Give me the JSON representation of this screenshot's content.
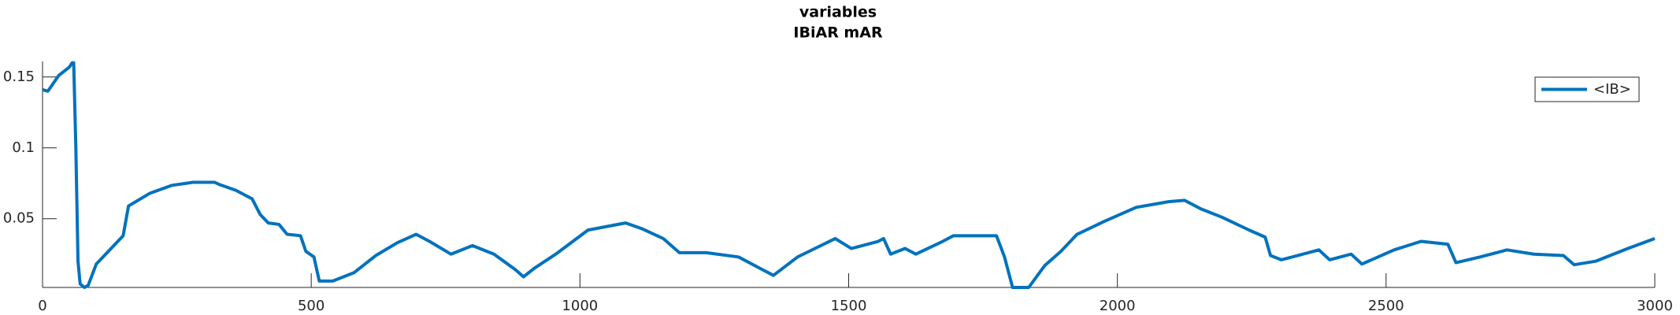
{
  "chart_data": {
    "type": "line",
    "title": "variables",
    "subtitle": "IBiAR mAR",
    "x": [
      0,
      10,
      30,
      50,
      55,
      58,
      62,
      66,
      70,
      78,
      85,
      100,
      150,
      160,
      200,
      240,
      280,
      320,
      330,
      360,
      390,
      405,
      420,
      440,
      455,
      480,
      490,
      505,
      515,
      540,
      580,
      620,
      660,
      695,
      720,
      760,
      800,
      840,
      880,
      895,
      915,
      955,
      1015,
      1085,
      1115,
      1155,
      1185,
      1235,
      1295,
      1335,
      1360,
      1405,
      1475,
      1505,
      1555,
      1565,
      1578,
      1605,
      1625,
      1675,
      1695,
      1775,
      1790,
      1805,
      1835,
      1865,
      1895,
      1925,
      1975,
      2035,
      2095,
      2125,
      2155,
      2195,
      2245,
      2275,
      2285,
      2305,
      2375,
      2395,
      2435,
      2455,
      2515,
      2565,
      2615,
      2630,
      2675,
      2725,
      2775,
      2830,
      2850,
      2890,
      2950,
      3000
    ],
    "series": [
      {
        "name": "<IB>",
        "color": "#0072bd",
        "values": [
          0.141,
          0.14,
          0.151,
          0.157,
          0.16,
          0.16,
          0.1,
          0.02,
          0.004,
          0.0015,
          0.003,
          0.018,
          0.038,
          0.059,
          0.068,
          0.0735,
          0.0757,
          0.0757,
          0.074,
          0.07,
          0.064,
          0.053,
          0.047,
          0.046,
          0.039,
          0.038,
          0.027,
          0.023,
          0.006,
          0.006,
          0.012,
          0.024,
          0.033,
          0.039,
          0.034,
          0.025,
          0.031,
          0.025,
          0.014,
          0.009,
          0.015,
          0.025,
          0.042,
          0.047,
          0.043,
          0.036,
          0.026,
          0.026,
          0.023,
          0.015,
          0.01,
          0.023,
          0.036,
          0.029,
          0.034,
          0.036,
          0.025,
          0.029,
          0.025,
          0.034,
          0.038,
          0.038,
          0.023,
          0.0015,
          0.0015,
          0.017,
          0.027,
          0.039,
          0.048,
          0.058,
          0.062,
          0.063,
          0.057,
          0.051,
          0.042,
          0.037,
          0.024,
          0.021,
          0.028,
          0.021,
          0.025,
          0.018,
          0.028,
          0.034,
          0.032,
          0.019,
          0.023,
          0.028,
          0.025,
          0.024,
          0.0175,
          0.02,
          0.029,
          0.036
        ]
      }
    ],
    "xlim": [
      0,
      3000
    ],
    "xticks": [
      0,
      500,
      1000,
      1500,
      2000,
      2500,
      3000
    ],
    "ylim": [
      0.0015,
      0.161
    ],
    "yticks": [
      0.05,
      0.1,
      0.15
    ],
    "legend_position": "upper right"
  }
}
